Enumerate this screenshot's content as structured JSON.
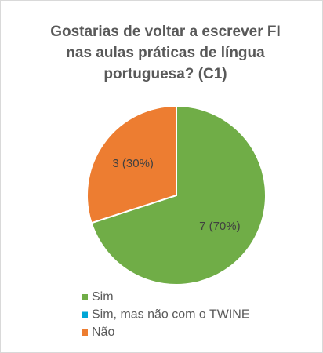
{
  "chart_data": {
    "type": "pie",
    "title": "Gostarias de voltar a escrever FI nas aulas práticas de língua portuguesa? (C1)",
    "categories": [
      "Sim",
      "Sim, mas não com o TWINE",
      "Não"
    ],
    "values": [
      7,
      0,
      3
    ],
    "value_labels": [
      "7 (70%)",
      null,
      "3 (30%)"
    ],
    "colors": [
      "#70ad47",
      "#00a6d6",
      "#ed7d31"
    ],
    "legend": "bottom-left"
  }
}
